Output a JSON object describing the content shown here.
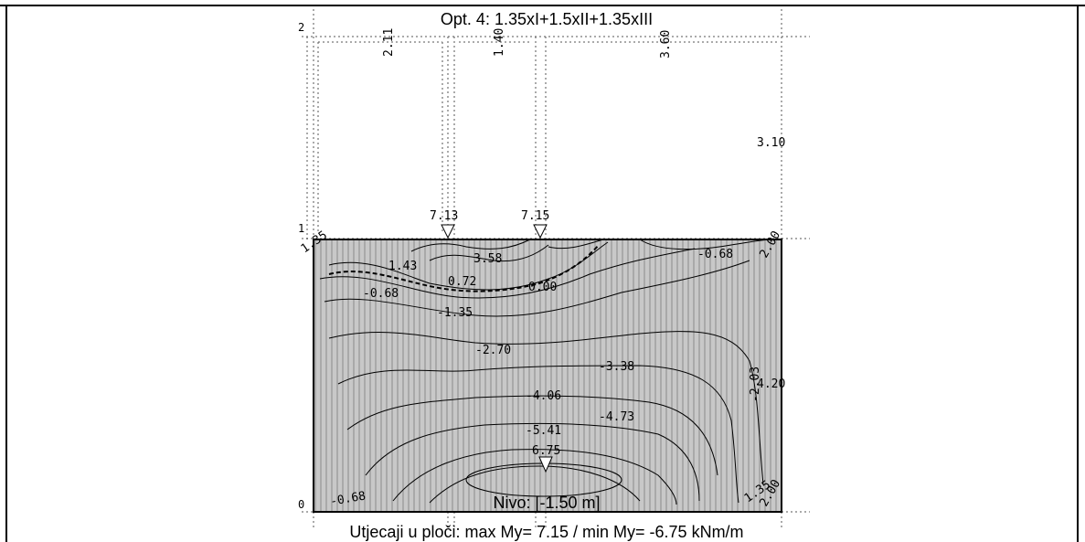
{
  "diagram": {
    "title": "Opt. 4: 1.35xI+1.5xII+1.35xIII",
    "level": "Nivo: [-1.50 m]",
    "footer": "Utjecaji u ploči: max My= 7.15 / min My= -6.75 kNm/m",
    "axis_labels": [
      "2",
      "1",
      "0"
    ],
    "support_values": {
      "left": "7.13",
      "right": "7.15",
      "bottom": "6.75"
    },
    "upper_values": [
      "2.11",
      "1.40",
      "3.60",
      "3.10"
    ],
    "contour_labels": [
      "3.58",
      "1.43",
      "0.72",
      "0.00",
      "-0.68",
      "-1.35",
      "-2.70",
      "-3.38",
      "-4.06",
      "-4.73",
      "-5.41",
      "-2.03",
      "4.20",
      "-0.68",
      "1.35",
      "2.00",
      "-0.68",
      "1.35",
      "2.00"
    ]
  },
  "colors": {
    "plate_fill": "#c8c8c8",
    "contour_line": "#000000",
    "grid_line": "#555555",
    "hatch": "#8a8a8a"
  }
}
